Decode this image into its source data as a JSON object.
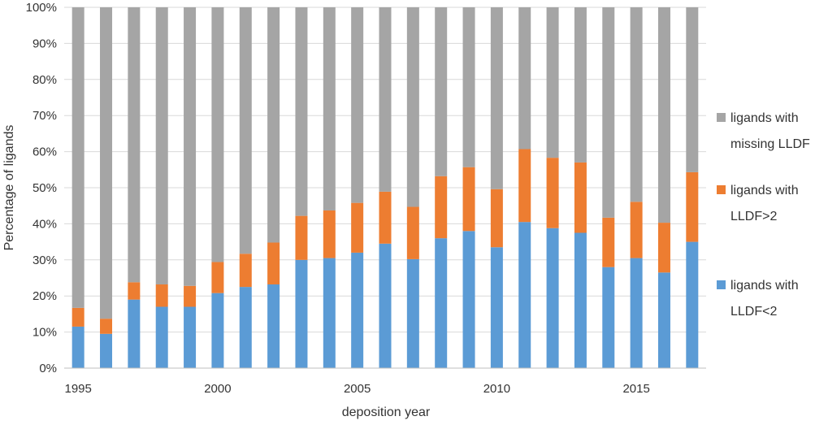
{
  "chart_data": {
    "type": "bar",
    "stacked": true,
    "title": "",
    "xlabel": "deposition year",
    "ylabel": "Percentage of ligands",
    "ylim": [
      0,
      100
    ],
    "y_ticks": [
      "0%",
      "10%",
      "20%",
      "30%",
      "40%",
      "50%",
      "60%",
      "70%",
      "80%",
      "90%",
      "100%"
    ],
    "x_tick_labels": [
      "1995",
      "2000",
      "2005",
      "2010",
      "2015"
    ],
    "categories": [
      1995,
      1996,
      1997,
      1998,
      1999,
      2000,
      2001,
      2002,
      2003,
      2004,
      2005,
      2006,
      2007,
      2008,
      2009,
      2010,
      2011,
      2012,
      2013,
      2014,
      2015,
      2016,
      2017
    ],
    "series": [
      {
        "name": "ligands with LLDF<2",
        "legend_lines": [
          "ligands with",
          "LLDF<2"
        ],
        "color": "#5b9bd5",
        "values": [
          11.5,
          9.5,
          19,
          17,
          17,
          20.8,
          22.5,
          23.2,
          30,
          30.5,
          32,
          34.5,
          30.2,
          36,
          38,
          33.5,
          40.5,
          38.8,
          37.5,
          28,
          30.5,
          26.5,
          35
        ]
      },
      {
        "name": "ligands with LLDF>2",
        "legend_lines": [
          "ligands with",
          "LLDF>2"
        ],
        "color": "#ed7d31",
        "values": [
          5.2,
          4.2,
          4.8,
          6.2,
          5.8,
          8.6,
          9.2,
          11.6,
          12.2,
          13.2,
          13.8,
          14.4,
          14.5,
          17.2,
          17.7,
          16.1,
          20.2,
          19.5,
          19.5,
          13.7,
          15.6,
          13.8,
          19.3
        ]
      },
      {
        "name": "ligands with missing LLDF",
        "legend_lines": [
          "ligands with",
          "missing LLDF"
        ],
        "color": "#a5a5a5",
        "values": [
          83.3,
          86.3,
          76.2,
          76.8,
          77.2,
          70.6,
          68.3,
          65.2,
          57.8,
          56.3,
          54.2,
          51.1,
          55.3,
          46.8,
          44.3,
          50.4,
          39.3,
          41.7,
          43.0,
          58.3,
          53.9,
          59.7,
          45.7
        ]
      }
    ],
    "grid": true,
    "legend_position": "right"
  }
}
